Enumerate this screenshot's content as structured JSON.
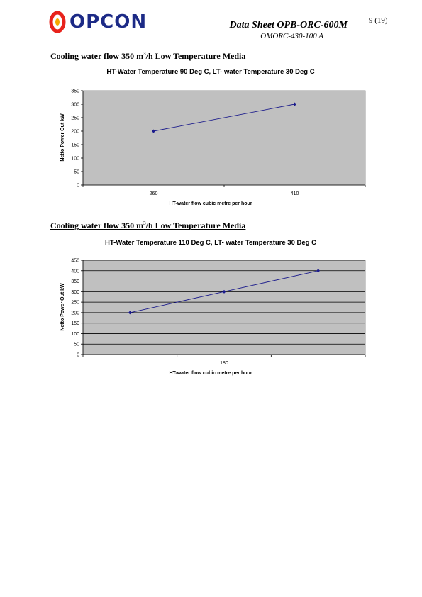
{
  "header": {
    "logo_text": "OPCON",
    "title": "Data Sheet OPB-ORC-600M",
    "subtitle": "OMORC-430-100 A",
    "page": "9 (19)"
  },
  "sections": [
    {
      "heading_prefix": "Cooling water flow 350 m",
      "heading_sup": "3",
      "heading_suffix": "/h  Low Temperature Media"
    },
    {
      "heading_prefix": "Cooling water flow 350 m",
      "heading_sup": "3",
      "heading_suffix": "/h  Low Temperature Media"
    }
  ],
  "colors": {
    "plot_bg": "#c0c0c0",
    "line": "#1c1c8c",
    "logo": "#1c2a86",
    "logo_accent": "#e8231c"
  },
  "chart_data": [
    {
      "type": "line",
      "title": "HT-Water Temperature 90 Deg C, LT- water Temperature 30 Deg C",
      "xlabel": "HT-water flow cubic metre per hour",
      "ylabel": "Netto Power Out kW",
      "categories": [
        "260",
        "410"
      ],
      "series": [
        {
          "values": [
            200,
            300
          ]
        }
      ],
      "ylim": [
        0,
        350
      ],
      "yticks": [
        0,
        50,
        100,
        150,
        200,
        250,
        300,
        350
      ],
      "grid": false
    },
    {
      "type": "line",
      "title": "HT-Water Temperature 110 Deg C, LT- water Temperature 30 Deg C",
      "xlabel": "HT-water flow cubic metre per hour",
      "ylabel": "Netto Power Out kW",
      "categories": [
        "",
        "180",
        ""
      ],
      "series": [
        {
          "values": [
            200,
            300,
            400
          ]
        }
      ],
      "ylim": [
        0,
        450
      ],
      "yticks": [
        0,
        50,
        100,
        150,
        200,
        250,
        300,
        350,
        400,
        450
      ],
      "grid": true
    }
  ]
}
